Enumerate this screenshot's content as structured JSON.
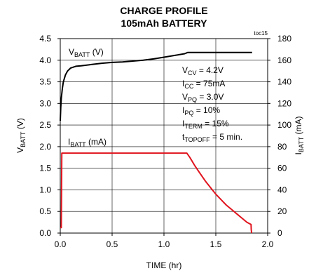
{
  "chart_data": {
    "type": "line",
    "title": "CHARGE PROFILE",
    "subtitle": "105mAh BATTERY",
    "tag": "toc15",
    "xlabel": "TIME (hr)",
    "ylabel_left": {
      "main": "V",
      "sub": "BATT",
      "unit": " (V)"
    },
    "ylabel_right": {
      "main": "I",
      "sub": "BATT",
      "unit": " (mA)"
    },
    "xlim": [
      0,
      2.0
    ],
    "ylim_left": [
      0,
      4.5
    ],
    "ylim_right": [
      0,
      180
    ],
    "x_ticks": [
      "0.0",
      "0.5",
      "1.0",
      "1.5",
      "2.0"
    ],
    "x_tick_values": [
      0,
      0.5,
      1.0,
      1.5,
      2.0
    ],
    "y_ticks_left": [
      "0.0",
      "0.5",
      "1.0",
      "1.5",
      "2.0",
      "2.5",
      "3.0",
      "3.5",
      "4.0",
      "4.5"
    ],
    "y_tick_values_left": [
      0,
      0.5,
      1.0,
      1.5,
      2.0,
      2.5,
      3.0,
      3.5,
      4.0,
      4.5
    ],
    "y_ticks_right": [
      "0",
      "20",
      "40",
      "60",
      "80",
      "100",
      "120",
      "140",
      "160",
      "180"
    ],
    "y_tick_values_right": [
      0,
      20,
      40,
      60,
      80,
      100,
      120,
      140,
      160,
      180
    ],
    "grid": true,
    "series": [
      {
        "name": {
          "main": "V",
          "sub": "BATT",
          "unit": " (V)"
        },
        "axis": "left",
        "color": "#000000",
        "x": [
          0.0,
          0.005,
          0.01,
          0.02,
          0.03,
          0.05,
          0.07,
          0.1,
          0.15,
          0.2,
          0.3,
          0.4,
          0.5,
          0.6,
          0.7,
          0.8,
          0.9,
          1.0,
          1.1,
          1.2,
          1.23,
          1.5,
          1.85
        ],
        "y": [
          2.6,
          2.9,
          3.12,
          3.35,
          3.5,
          3.66,
          3.75,
          3.82,
          3.86,
          3.87,
          3.9,
          3.93,
          3.95,
          3.96,
          3.98,
          4.0,
          4.03,
          4.07,
          4.11,
          4.15,
          4.18,
          4.18,
          4.18
        ]
      },
      {
        "name": {
          "main": "I",
          "sub": "BATT",
          "unit": " (mA)"
        },
        "axis": "right",
        "color": "#e0141e",
        "x": [
          0.0,
          0.01,
          0.015,
          0.03,
          1.2,
          1.22,
          1.25,
          1.3,
          1.35,
          1.4,
          1.45,
          1.5,
          1.55,
          1.6,
          1.65,
          1.7,
          1.75,
          1.8,
          1.84,
          1.842,
          1.845
        ],
        "y": [
          5,
          5,
          74,
          74,
          74,
          74,
          70,
          62,
          55,
          48,
          42,
          36,
          31,
          26,
          22,
          18,
          14,
          10,
          8,
          3,
          0
        ]
      }
    ],
    "parameters": [
      {
        "main": "V",
        "sub": "CV",
        "rest": " = 4.2V"
      },
      {
        "main": "I",
        "sub": "CC",
        "rest": " = 75mA"
      },
      {
        "main": "V",
        "sub": "PQ",
        "rest": " = 3.0V"
      },
      {
        "main": "I",
        "sub": "PQ",
        "rest": " = 10%"
      },
      {
        "main": "I",
        "sub": "TERM",
        "rest": " = 15%"
      },
      {
        "main": "t",
        "sub": "TOPOFF",
        "rest": " = 5 min."
      }
    ]
  }
}
